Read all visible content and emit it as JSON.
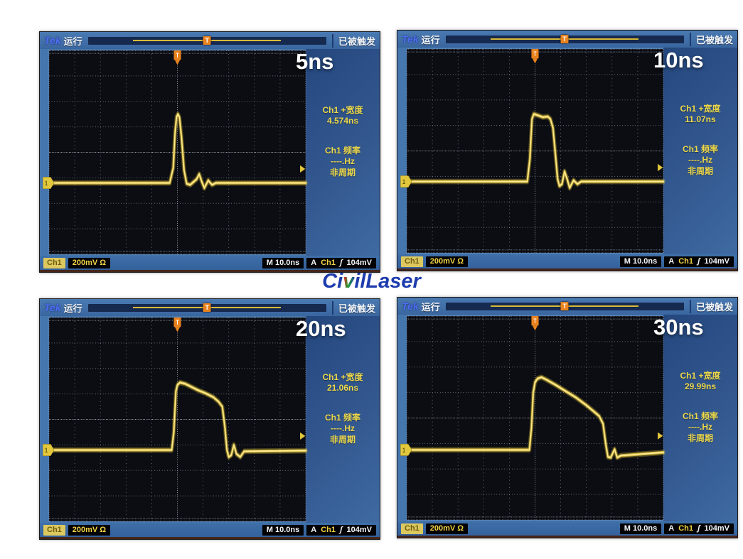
{
  "logo": {
    "part1": "Ci",
    "part2": "v",
    "part3": "ilLaser"
  },
  "colors": {
    "trace_yellow": "#f2d443",
    "bezel_blue": "#4576ad",
    "screen_black": "#0b0d13",
    "panel_blue": "#2c5186",
    "marker_orange": "#e8821e",
    "logo_blue": "#1d3cae"
  },
  "scopes": [
    {
      "label": "5ns",
      "brand": "Tek",
      "run_status": "运行",
      "trigger_status": "已被触发",
      "trigger_marker": "T",
      "meas_width_label": "Ch1 +宽度",
      "meas_width_value": "4.574ns",
      "meas_freq_label": "Ch1 频率",
      "meas_freq_value": "----.Hz",
      "meas_freq_note": "非周期",
      "ch_badge": "Ch1",
      "v_scale": "200mV Ω",
      "timebase": "M 10.0ns",
      "acq_mode": "A",
      "trig_source": "Ch1",
      "trig_slope": "ʃ",
      "trig_level": "104mV",
      "channel_number": "1"
    },
    {
      "label": "10ns",
      "brand": "Tek",
      "run_status": "运行",
      "trigger_status": "已被触发",
      "trigger_marker": "T",
      "meas_width_label": "Ch1 +宽度",
      "meas_width_value": "11.07ns",
      "meas_freq_label": "Ch1 频率",
      "meas_freq_value": "----.Hz",
      "meas_freq_note": "非周期",
      "ch_badge": "Ch1",
      "v_scale": "200mV Ω",
      "timebase": "M 10.0ns",
      "acq_mode": "A",
      "trig_source": "Ch1",
      "trig_slope": "ʃ",
      "trig_level": "104mV",
      "channel_number": "1"
    },
    {
      "label": "20ns",
      "brand": "Tek",
      "run_status": "运行",
      "trigger_status": "已被触发",
      "trigger_marker": "T",
      "meas_width_label": "Ch1 +宽度",
      "meas_width_value": "21.06ns",
      "meas_freq_label": "Ch1 频率",
      "meas_freq_value": "----.Hz",
      "meas_freq_note": "非周期",
      "ch_badge": "Ch1",
      "v_scale": "200mV Ω",
      "timebase": "M 10.0ns",
      "acq_mode": "A",
      "trig_source": "Ch1",
      "trig_slope": "ʃ",
      "trig_level": "104mV",
      "channel_number": "1"
    },
    {
      "label": "30ns",
      "brand": "Tek",
      "run_status": "运行",
      "trigger_status": "已被触发",
      "trigger_marker": "T",
      "meas_width_label": "Ch1 +宽度",
      "meas_width_value": "29.99ns",
      "meas_freq_label": "Ch1 频率",
      "meas_freq_value": "----.Hz",
      "meas_freq_note": "非周期",
      "ch_badge": "Ch1",
      "v_scale": "200mV Ω",
      "timebase": "M 10.0ns",
      "acq_mode": "A",
      "trig_source": "Ch1",
      "trig_slope": "ʃ",
      "trig_level": "104mV",
      "channel_number": "1"
    }
  ],
  "chart_data": [
    {
      "type": "line",
      "title": "5ns laser pulse",
      "series_name": "Ch1",
      "timebase": "10.0ns/div",
      "vertical_scale": "200mV/div",
      "x_range_ns": [
        -50,
        50
      ],
      "divisions": [
        10,
        8
      ],
      "baseline_div_from_top": 5.2,
      "trigger_level_mV": 104,
      "measured_pulse_width": "4.574ns",
      "x_ns": [
        -50,
        -3,
        -1.6,
        -0.9,
        -0.3,
        0.2,
        0.8,
        1.6,
        2.6,
        3.6,
        5,
        7.5,
        8.5,
        9.5,
        10.5,
        12,
        13.5,
        15,
        50
      ],
      "y_mV": [
        0,
        0,
        120,
        400,
        520,
        540,
        515,
        360,
        100,
        -5,
        -15,
        30,
        70,
        10,
        -40,
        20,
        -15,
        0,
        0
      ]
    },
    {
      "type": "line",
      "title": "10ns laser pulse",
      "series_name": "Ch1",
      "timebase": "10.0ns/div",
      "vertical_scale": "200mV/div",
      "x_range_ns": [
        -50,
        50
      ],
      "divisions": [
        10,
        8
      ],
      "baseline_div_from_top": 5.2,
      "trigger_level_mV": 104,
      "measured_pulse_width": "11.07ns",
      "x_ns": [
        -50,
        -3,
        -2,
        -1.2,
        -0.5,
        1,
        3,
        5,
        6,
        7,
        8,
        8.8,
        9.5,
        10.5,
        11.5,
        12.5,
        13.5,
        15,
        16.5,
        18,
        50
      ],
      "y_mV": [
        0,
        0,
        180,
        490,
        530,
        520,
        505,
        510,
        490,
        420,
        200,
        20,
        -35,
        -20,
        80,
        20,
        -50,
        10,
        -20,
        0,
        0
      ]
    },
    {
      "type": "line",
      "title": "20ns laser pulse",
      "series_name": "Ch1",
      "timebase": "10.0ns/div",
      "vertical_scale": "200mV/div",
      "x_range_ns": [
        -50,
        50
      ],
      "divisions": [
        10,
        8
      ],
      "baseline_div_from_top": 5.2,
      "trigger_level_mV": 104,
      "measured_pulse_width": "21.06ns",
      "x_ns": [
        -50,
        -2.2,
        -1.4,
        -0.6,
        0,
        1,
        3,
        5,
        8,
        11,
        14,
        16,
        17.5,
        18.5,
        19.3,
        20,
        21,
        22,
        23,
        24.5,
        26,
        50
      ],
      "y_mV": [
        0,
        0,
        140,
        460,
        510,
        530,
        520,
        500,
        470,
        445,
        415,
        380,
        340,
        180,
        0,
        -55,
        -40,
        40,
        -30,
        -55,
        -10,
        -5
      ]
    },
    {
      "type": "line",
      "title": "30ns laser pulse",
      "series_name": "Ch1",
      "timebase": "10.0ns/div",
      "vertical_scale": "200mV/div",
      "x_range_ns": [
        -50,
        50
      ],
      "divisions": [
        10,
        8
      ],
      "baseline_div_from_top": 5.25,
      "trigger_level_mV": 104,
      "measured_pulse_width": "29.99ns",
      "x_ns": [
        -50,
        -2.2,
        -1.4,
        -0.7,
        0,
        1,
        2.5,
        4.5,
        8,
        12,
        16,
        20,
        23,
        25,
        26.5,
        27.6,
        28.4,
        29.5,
        31,
        32,
        33.5,
        50
      ],
      "y_mV": [
        0,
        0,
        170,
        450,
        530,
        560,
        570,
        550,
        510,
        460,
        410,
        350,
        300,
        265,
        205,
        40,
        -55,
        -60,
        5,
        -60,
        -45,
        -20
      ]
    }
  ]
}
